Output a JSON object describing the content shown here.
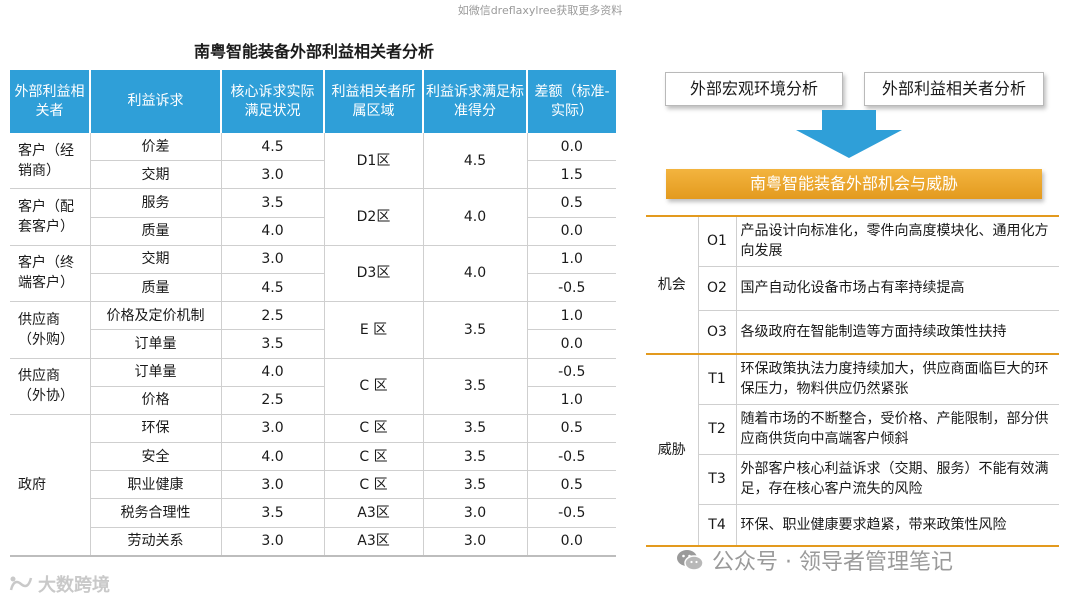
{
  "top_note": "如微信dreflaxylree获取更多资料",
  "left_title": "南粤智能装备外部利益相关者分析",
  "stakeholder_table": {
    "headers": [
      "外部利益相关者",
      "利益诉求",
      "核心诉求实际满足状况",
      "利益相关者所属区域",
      "利益诉求满足标准得分",
      "差额（标准-实际）"
    ],
    "groups": [
      {
        "name": "客户（经销商）",
        "region": "D1区",
        "score": "4.5",
        "rows": [
          {
            "demand": "价差",
            "actual": "4.5",
            "diff": "0.0"
          },
          {
            "demand": "交期",
            "actual": "3.0",
            "diff": "1.5"
          }
        ]
      },
      {
        "name": "客户（配套客户）",
        "region": "D2区",
        "score": "4.0",
        "rows": [
          {
            "demand": "服务",
            "actual": "3.5",
            "diff": "0.5"
          },
          {
            "demand": "质量",
            "actual": "4.0",
            "diff": "0.0"
          }
        ]
      },
      {
        "name": "客户（终端客户）",
        "region": "D3区",
        "score": "4.0",
        "rows": [
          {
            "demand": "交期",
            "actual": "3.0",
            "diff": "1.0"
          },
          {
            "demand": "质量",
            "actual": "4.5",
            "diff": "-0.5"
          }
        ]
      },
      {
        "name": "供应商（外购）",
        "region": "E 区",
        "score": "3.5",
        "rows": [
          {
            "demand": "价格及定价机制",
            "actual": "2.5",
            "diff": "1.0"
          },
          {
            "demand": "订单量",
            "actual": "3.5",
            "diff": "0.0"
          }
        ]
      },
      {
        "name": "供应商（外协）",
        "region": "C 区",
        "score": "3.5",
        "rows": [
          {
            "demand": "订单量",
            "actual": "4.0",
            "diff": "-0.5"
          },
          {
            "demand": "价格",
            "actual": "2.5",
            "diff": "1.0"
          }
        ]
      }
    ],
    "gov": {
      "name": "政府",
      "rows": [
        {
          "demand": "环保",
          "actual": "3.0",
          "region": "C 区",
          "score": "3.5",
          "diff": "0.5"
        },
        {
          "demand": "安全",
          "actual": "4.0",
          "region": "C 区",
          "score": "3.5",
          "diff": "-0.5"
        },
        {
          "demand": "职业健康",
          "actual": "3.0",
          "region": "C 区",
          "score": "3.5",
          "diff": "0.5"
        },
        {
          "demand": "税务合理性",
          "actual": "3.5",
          "region": "A3区",
          "score": "3.0",
          "diff": "-0.5"
        },
        {
          "demand": "劳动关系",
          "actual": "3.0",
          "region": "A3区",
          "score": "3.0",
          "diff": "0.0"
        }
      ]
    }
  },
  "right": {
    "btn_macro": "外部宏观环境分析",
    "btn_stakeholder": "外部利益相关者分析",
    "banner": "南粤智能装备外部机会与威胁",
    "opportunity_label": "机会",
    "threat_label": "威胁",
    "opportunities": [
      {
        "code": "O1",
        "text": "产品设计向标准化，零件向高度模块化、通用化方向发展"
      },
      {
        "code": "O2",
        "text": "国产自动化设备市场占有率持续提高"
      },
      {
        "code": "O3",
        "text": "各级政府在智能制造等方面持续政策性扶持"
      }
    ],
    "threats": [
      {
        "code": "T1",
        "text": "环保政策执法力度持续加大，供应商面临巨大的环保压力，物料供应仍然紧张"
      },
      {
        "code": "T2",
        "text": "随着市场的不断整合，受价格、产能限制，部分供应商供货向中高端客户倾斜"
      },
      {
        "code": "T3",
        "text": "外部客户核心利益诉求（交期、服务）不能有效满足，存在核心客户流失的风险"
      },
      {
        "code": "T4",
        "text": "环保、职业健康要求趋紧，带来政策性风险"
      }
    ]
  },
  "watermark_left": "大数跨境",
  "watermark_right": "公众号 · 领导者管理笔记",
  "colors": {
    "header_blue": "#2f9fd8",
    "arrow_blue": "#2f9fd8",
    "banner_orange": "#e39a1e"
  }
}
